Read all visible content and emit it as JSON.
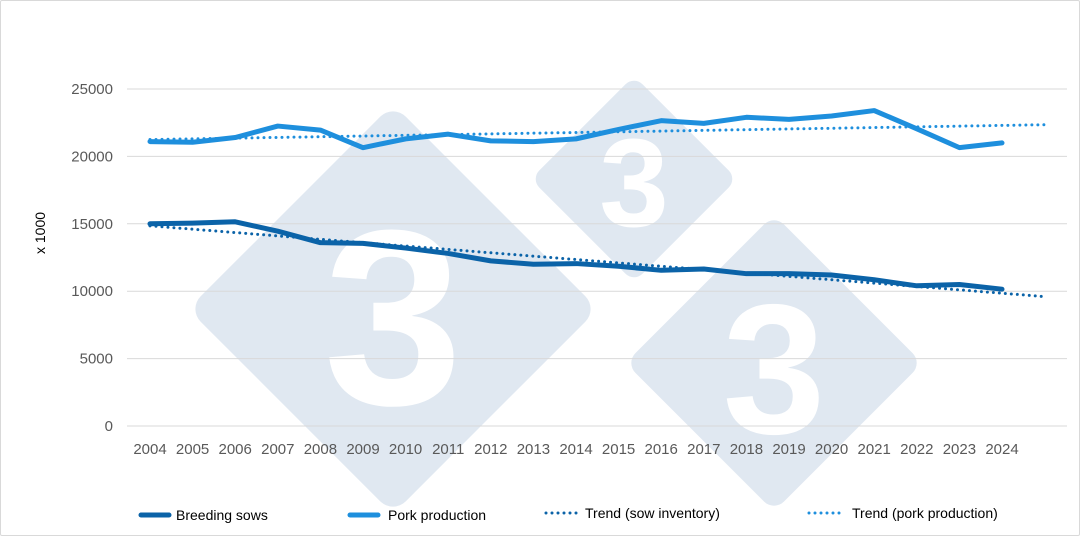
{
  "chart_data": {
    "type": "line",
    "title": "",
    "xlabel": "",
    "ylabel": "x 1000",
    "ylim": [
      0,
      25000
    ],
    "y_ticks": [
      "0",
      "5000",
      "10000",
      "15000",
      "20000",
      "25000"
    ],
    "categories": [
      "2004",
      "2005",
      "2006",
      "2007",
      "2008",
      "2009",
      "2010",
      "2011",
      "2012",
      "2013",
      "2014",
      "2015",
      "2016",
      "2017",
      "2018",
      "2019",
      "2020",
      "2021",
      "2022",
      "2023",
      "2024"
    ],
    "grid": true,
    "legend_position": "bottom",
    "series": [
      {
        "name": "Breeding sows",
        "style": "solid-thick",
        "color": "#0b63a8",
        "values": [
          15000,
          15050,
          15150,
          14450,
          13600,
          13550,
          13200,
          12800,
          12250,
          12000,
          12050,
          11850,
          11550,
          11650,
          11300,
          11300,
          11200,
          10850,
          10400,
          10500,
          10150
        ]
      },
      {
        "name": "Pork production",
        "style": "solid-thick",
        "color": "#1e8fdd",
        "values": [
          21100,
          21050,
          21400,
          22250,
          21950,
          20650,
          21300,
          21650,
          21150,
          21100,
          21300,
          22000,
          22650,
          22450,
          22900,
          22750,
          23000,
          23400,
          22050,
          20650,
          21000
        ]
      },
      {
        "name": "Trend (sow inventory)",
        "style": "dotted",
        "color": "#0b63a8",
        "trend_start": 14850,
        "trend_end": 9600,
        "trend_end_position": 2025
      },
      {
        "name": "Trend (pork production)",
        "style": "dotted",
        "color": "#1e8fdd",
        "trend_start": 21250,
        "trend_end": 22350,
        "trend_end_position": 2025
      }
    ]
  },
  "colors": {
    "sows": "#0b63a8",
    "pork": "#1e8fdd",
    "grid": "#d9d9d9",
    "watermark": "#dde6f0"
  },
  "watermark_icon": "logo-3-diamond"
}
